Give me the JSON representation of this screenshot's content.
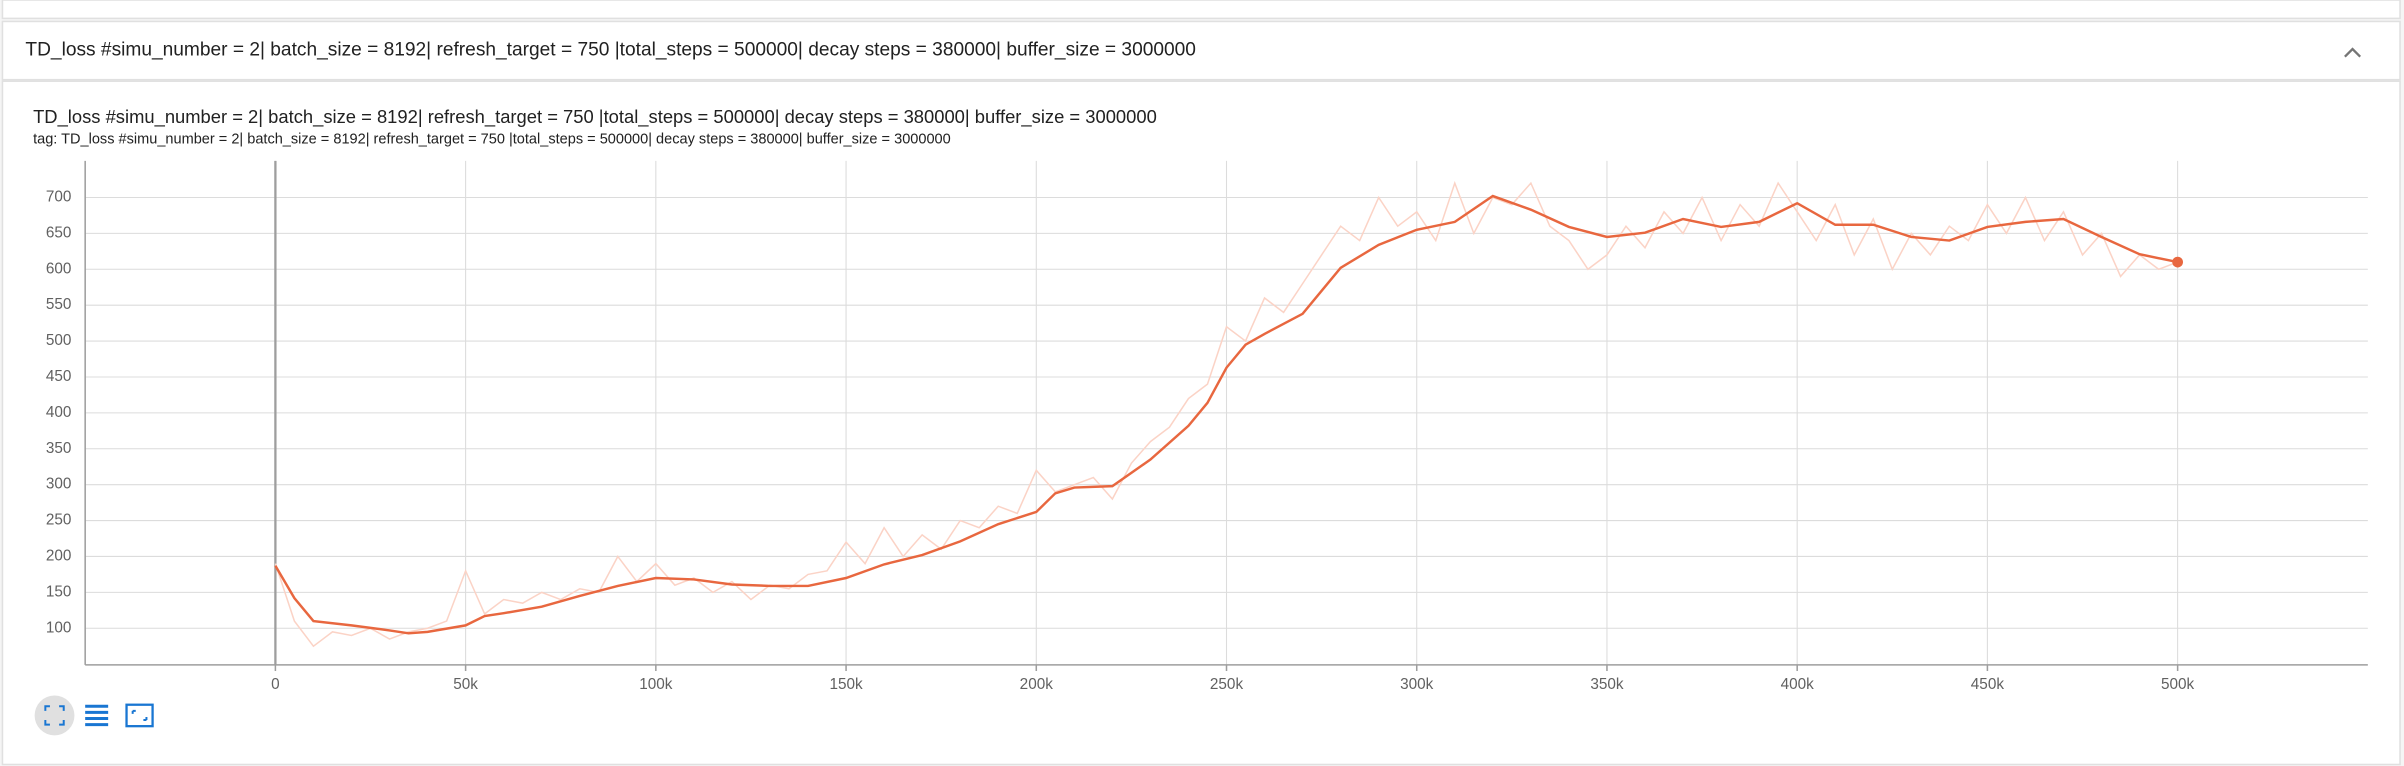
{
  "header": {
    "title": "TD_loss #simu_number = 2| batch_size = 8192| refresh_target = 750 |total_steps = 500000| decay steps = 380000| buffer_size = 3000000"
  },
  "chart_data": {
    "type": "line",
    "title": "TD_loss #simu_number = 2| batch_size = 8192| refresh_target = 750 |total_steps = 500000| decay steps = 380000| buffer_size = 3000000",
    "subtitle": "tag: TD_loss #simu_number = 2| batch_size = 8192| refresh_target = 750 |total_steps = 500000| decay steps = 380000| buffer_size = 3000000",
    "xlim": [
      -50000,
      550000
    ],
    "ylim": [
      49,
      751
    ],
    "grid": true,
    "xticks": [
      0,
      {
        "value": 50000,
        "label": "50k"
      },
      {
        "value": 100000,
        "label": "100k"
      },
      {
        "value": 150000,
        "label": "150k"
      },
      {
        "value": 200000,
        "label": "200k"
      },
      {
        "value": 250000,
        "label": "250k"
      },
      {
        "value": 300000,
        "label": "300k"
      },
      {
        "value": 350000,
        "label": "350k"
      },
      {
        "value": 400000,
        "label": "400k"
      },
      {
        "value": 450000,
        "label": "450k"
      },
      {
        "value": 500000,
        "label": "500k"
      }
    ],
    "yticks": [
      100,
      150,
      200,
      250,
      300,
      350,
      400,
      450,
      500,
      550,
      600,
      650,
      700
    ],
    "series": [
      {
        "color": "#fbd3c6",
        "x": [
          0,
          5000,
          10000,
          15000,
          20000,
          25000,
          30000,
          35000,
          40000,
          45000,
          50000,
          55000,
          60000,
          65000,
          70000,
          75000,
          80000,
          85000,
          90000,
          95000,
          100000,
          105000,
          110000,
          115000,
          120000,
          125000,
          130000,
          135000,
          140000,
          145000,
          150000,
          155000,
          160000,
          165000,
          170000,
          175000,
          180000,
          185000,
          190000,
          195000,
          200000,
          205000,
          210000,
          215000,
          220000,
          225000,
          230000,
          235000,
          240000,
          245000,
          250000,
          255000,
          260000,
          265000,
          270000,
          275000,
          280000,
          285000,
          290000,
          295000,
          300000,
          305000,
          310000,
          315000,
          320000,
          325000,
          330000,
          335000,
          340000,
          345000,
          350000,
          355000,
          360000,
          365000,
          370000,
          375000,
          380000,
          385000,
          390000,
          395000,
          400000,
          405000,
          410000,
          415000,
          420000,
          425000,
          430000,
          435000,
          440000,
          445000,
          450000,
          455000,
          460000,
          465000,
          470000,
          475000,
          480000,
          485000,
          490000,
          495000,
          500000
        ],
        "values": [
          190,
          110,
          75,
          95,
          90,
          100,
          85,
          95,
          100,
          110,
          180,
          120,
          140,
          135,
          150,
          140,
          155,
          150,
          200,
          165,
          190,
          160,
          170,
          150,
          165,
          140,
          160,
          155,
          175,
          180,
          220,
          190,
          240,
          200,
          230,
          210,
          250,
          240,
          270,
          260,
          320,
          290,
          300,
          310,
          280,
          330,
          360,
          380,
          420,
          440,
          520,
          500,
          560,
          540,
          580,
          620,
          660,
          640,
          700,
          660,
          680,
          640,
          720,
          650,
          700,
          690,
          720,
          660,
          640,
          600,
          620,
          660,
          630,
          680,
          650,
          700,
          640,
          690,
          660,
          720,
          680,
          640,
          690,
          620,
          670,
          600,
          650,
          620,
          660,
          640,
          690,
          650,
          700,
          640,
          680,
          620,
          650,
          590,
          620,
          600,
          610
        ]
      },
      {
        "color": "#e8673f",
        "x": [
          0,
          5000,
          10000,
          20000,
          30000,
          35000,
          40000,
          50000,
          55000,
          60000,
          70000,
          80000,
          90000,
          100000,
          110000,
          120000,
          130000,
          140000,
          150000,
          160000,
          170000,
          180000,
          190000,
          200000,
          205000,
          210000,
          220000,
          230000,
          240000,
          245000,
          250000,
          255000,
          260000,
          270000,
          275000,
          280000,
          290000,
          300000,
          310000,
          320000,
          330000,
          340000,
          350000,
          360000,
          370000,
          380000,
          390000,
          400000,
          410000,
          420000,
          430000,
          440000,
          450000,
          460000,
          470000,
          480000,
          490000,
          500000
        ],
        "values": [
          187,
          142,
          110,
          104,
          97,
          93,
          95,
          104,
          117,
          121,
          130,
          145,
          159,
          170,
          168,
          161,
          159,
          159,
          170,
          189,
          202,
          221,
          245,
          262,
          288,
          296,
          298,
          335,
          382,
          414,
          463,
          495,
          510,
          538,
          570,
          602,
          634,
          655,
          666,
          702,
          683,
          659,
          645,
          651,
          670,
          659,
          666,
          692,
          662,
          662,
          645,
          640,
          659,
          666,
          670,
          645,
          621,
          610
        ]
      }
    ]
  }
}
